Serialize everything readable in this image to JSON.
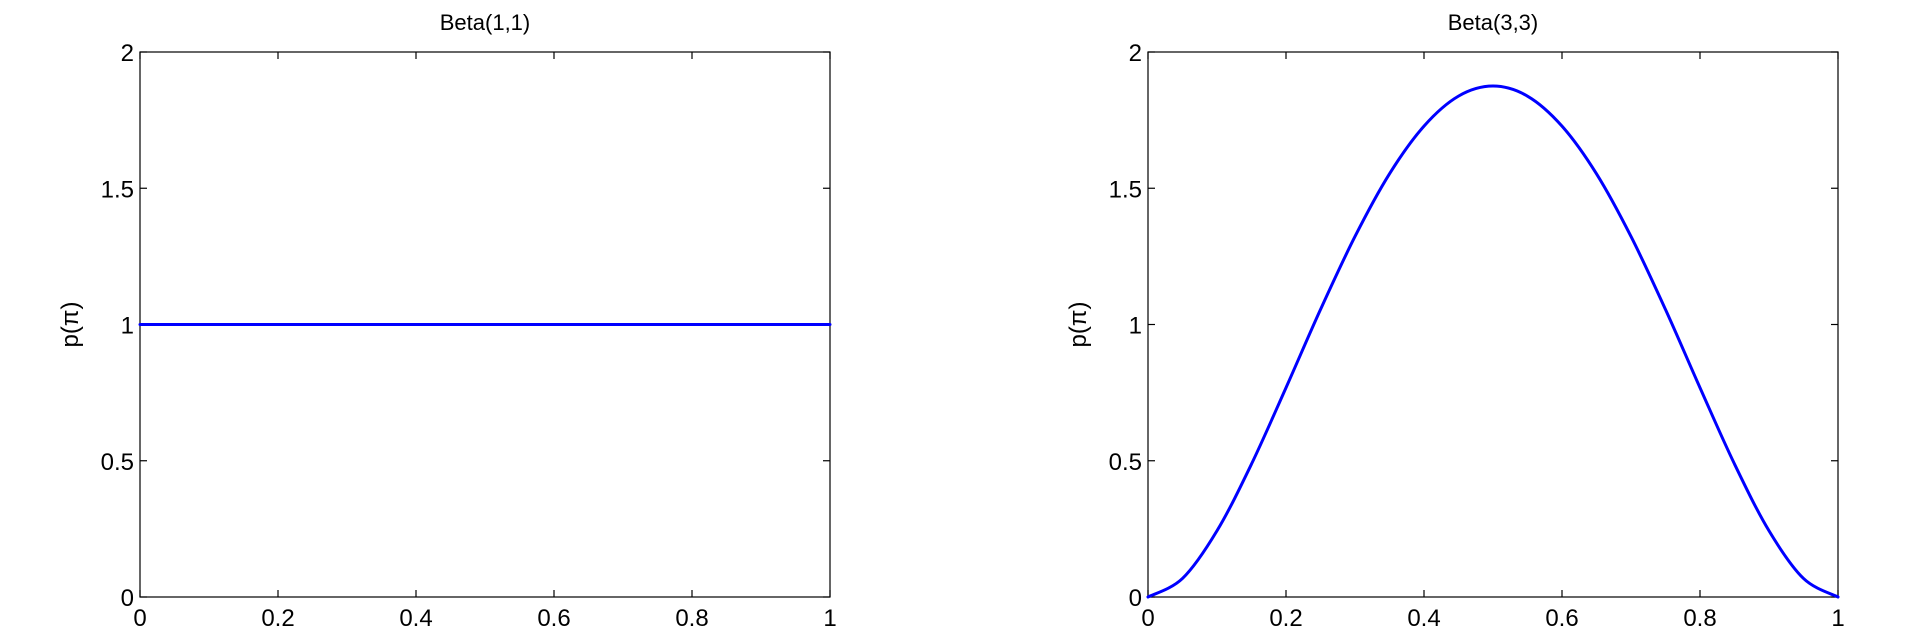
{
  "chart_data": [
    {
      "type": "line",
      "title": "Beta(1,1)",
      "xlabel": "",
      "ylabel": "p(π)",
      "xlim": [
        0,
        1
      ],
      "ylim": [
        0,
        2
      ],
      "xticks": [
        "0",
        "0.2",
        "0.4",
        "0.6",
        "0.8",
        "1"
      ],
      "yticks": [
        "0",
        "0.5",
        "1",
        "1.5",
        "2"
      ],
      "grid": false,
      "series": [
        {
          "color": "#0000ff",
          "x": [
            0,
            0.1,
            0.2,
            0.3,
            0.4,
            0.5,
            0.6,
            0.7,
            0.8,
            0.9,
            1
          ],
          "y": [
            1,
            1,
            1,
            1,
            1,
            1,
            1,
            1,
            1,
            1,
            1
          ]
        }
      ]
    },
    {
      "type": "line",
      "title": "Beta(3,3)",
      "xlabel": "",
      "ylabel": "p(π)",
      "xlim": [
        0,
        1
      ],
      "ylim": [
        0,
        2
      ],
      "xticks": [
        "0",
        "0.2",
        "0.4",
        "0.6",
        "0.8",
        "1"
      ],
      "yticks": [
        "0",
        "0.5",
        "1",
        "1.5",
        "2"
      ],
      "grid": false,
      "series": [
        {
          "color": "#0000ff",
          "x": [
            0,
            0.05,
            0.1,
            0.15,
            0.2,
            0.25,
            0.3,
            0.35,
            0.4,
            0.45,
            0.5,
            0.55,
            0.6,
            0.65,
            0.7,
            0.75,
            0.8,
            0.85,
            0.9,
            0.95,
            1
          ],
          "y": [
            0,
            0.068,
            0.243,
            0.488,
            0.768,
            1.055,
            1.323,
            1.553,
            1.728,
            1.838,
            1.875,
            1.838,
            1.728,
            1.553,
            1.323,
            1.055,
            0.768,
            0.488,
            0.243,
            0.068,
            0
          ]
        }
      ]
    }
  ]
}
